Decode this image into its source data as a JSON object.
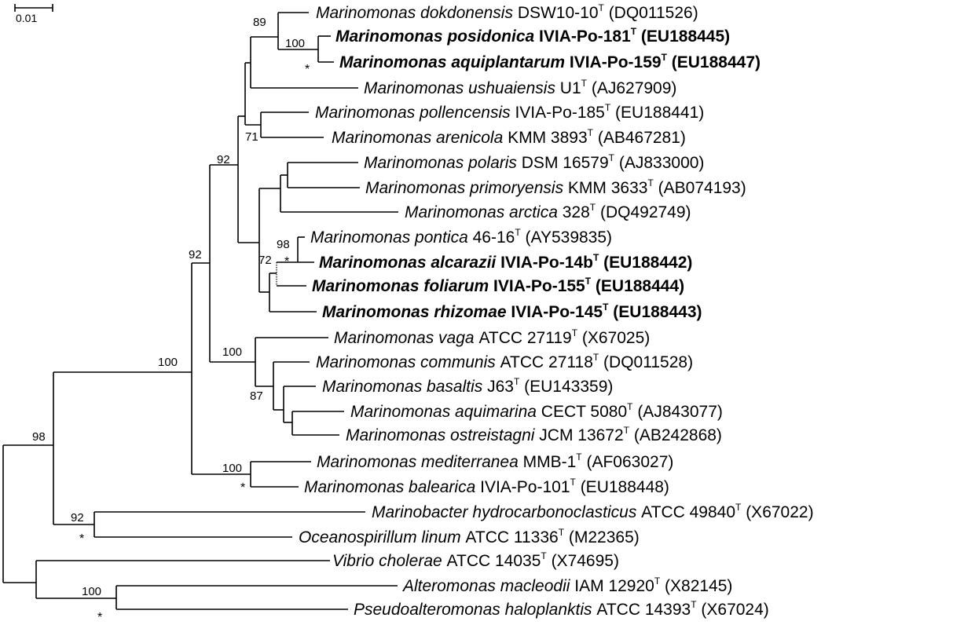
{
  "scale_bar": {
    "label": "0.01"
  },
  "type_mark": "T",
  "taxa": [
    {
      "genus": "Marinomonas",
      "species": "dokdonensis",
      "strain": "DSW10-10",
      "accession": "(DQ011526)",
      "bold": false
    },
    {
      "genus": "Marinomonas",
      "species": "posidonica",
      "strain": "IVIA-Po-181",
      "accession": "(EU188445)",
      "bold": true
    },
    {
      "genus": "Marinomonas",
      "species": "aquiplantarum",
      "strain": "IVIA-Po-159",
      "accession": "(EU188447)",
      "bold": true
    },
    {
      "genus": "Marinomonas",
      "species": "ushuaiensis",
      "strain": "U1",
      "accession": "(AJ627909)",
      "bold": false
    },
    {
      "genus": "Marinomonas",
      "species": "pollencensis",
      "strain": "IVIA-Po-185",
      "accession": "(EU188441)",
      "bold": false
    },
    {
      "genus": "Marinomonas",
      "species": "arenicola",
      "strain": "KMM 3893",
      "accession": "(AB467281)",
      "bold": false
    },
    {
      "genus": "Marinomonas",
      "species": "polaris",
      "strain": "DSM 16579",
      "accession": "(AJ833000)",
      "bold": false
    },
    {
      "genus": "Marinomonas",
      "species": "primoryensis",
      "strain": "KMM 3633",
      "accession": "(AB074193)",
      "bold": false
    },
    {
      "genus": "Marinomonas",
      "species": "arctica",
      "strain": "328",
      "accession": "(DQ492749)",
      "bold": false
    },
    {
      "genus": "Marinomonas",
      "species": "pontica",
      "strain": "46-16",
      "accession": "(AY539835)",
      "bold": false
    },
    {
      "genus": "Marinomonas",
      "species": "alcarazii",
      "strain": "IVIA-Po-14b",
      "accession": "(EU188442)",
      "bold": true
    },
    {
      "genus": "Marinomonas",
      "species": "foliarum",
      "strain": " IVIA-Po-155",
      "accession": "(EU188444)",
      "bold": true
    },
    {
      "genus": "Marinomonas",
      "species": "rhizomae",
      "strain": "IVIA-Po-145",
      "accession": "(EU188443)",
      "bold": true
    },
    {
      "genus": "Marinomonas",
      "species": "vaga",
      "strain": "ATCC 27119",
      "accession": "(X67025)",
      "bold": false
    },
    {
      "genus": "Marinomonas",
      "species": "communis",
      "strain": "ATCC 27118",
      "accession": "(DQ011528)",
      "bold": false
    },
    {
      "genus": "Marinomonas",
      "species": "basaltis",
      "strain": "J63",
      "accession": "(EU143359)",
      "bold": false
    },
    {
      "genus": "Marinomonas",
      "species": "aquimarina",
      "strain": "CECT 5080",
      "accession": "(AJ843077)",
      "bold": false
    },
    {
      "genus": "Marinomonas",
      "species": "ostreistagni",
      "strain": "JCM 13672",
      "accession": "(AB242868)",
      "bold": false
    },
    {
      "genus": "Marinomonas",
      "species": "mediterranea",
      "strain": "MMB-1",
      "accession": "(AF063027)",
      "bold": false
    },
    {
      "genus": "Marinomonas",
      "species": "balearica",
      "strain": "IVIA-Po-101",
      "accession": "(EU188448)",
      "bold": false
    },
    {
      "genus": "Marinobacter",
      "species": "hydrocarbonoclasticus",
      "strain": "ATCC 49840",
      "accession": "(X67022)",
      "bold": false
    },
    {
      "genus": "Oceanospirillum",
      "species": "linum",
      "strain": "ATCC 11336",
      "accession": "(M22365)",
      "bold": false
    },
    {
      "genus": "Vibrio",
      "species": "cholerae",
      "strain": "ATCC 14035",
      "accession": "(X74695)",
      "bold": false
    },
    {
      "genus": "Alteromonas",
      "species": "macleodii",
      "strain": "IAM 12920",
      "accession": "(X82145)",
      "bold": false
    },
    {
      "genus": "Pseudoalteromonas",
      "species": "haloplanktis",
      "strain": "ATCC 14393",
      "accession": "(X67024)",
      "bold": false
    }
  ],
  "bootstrap_values": [
    "89",
    "100",
    "71",
    "92",
    "98",
    "72",
    "92",
    "100",
    "87",
    "100",
    "100",
    "98",
    "92",
    "100"
  ],
  "asterisk": "*"
}
